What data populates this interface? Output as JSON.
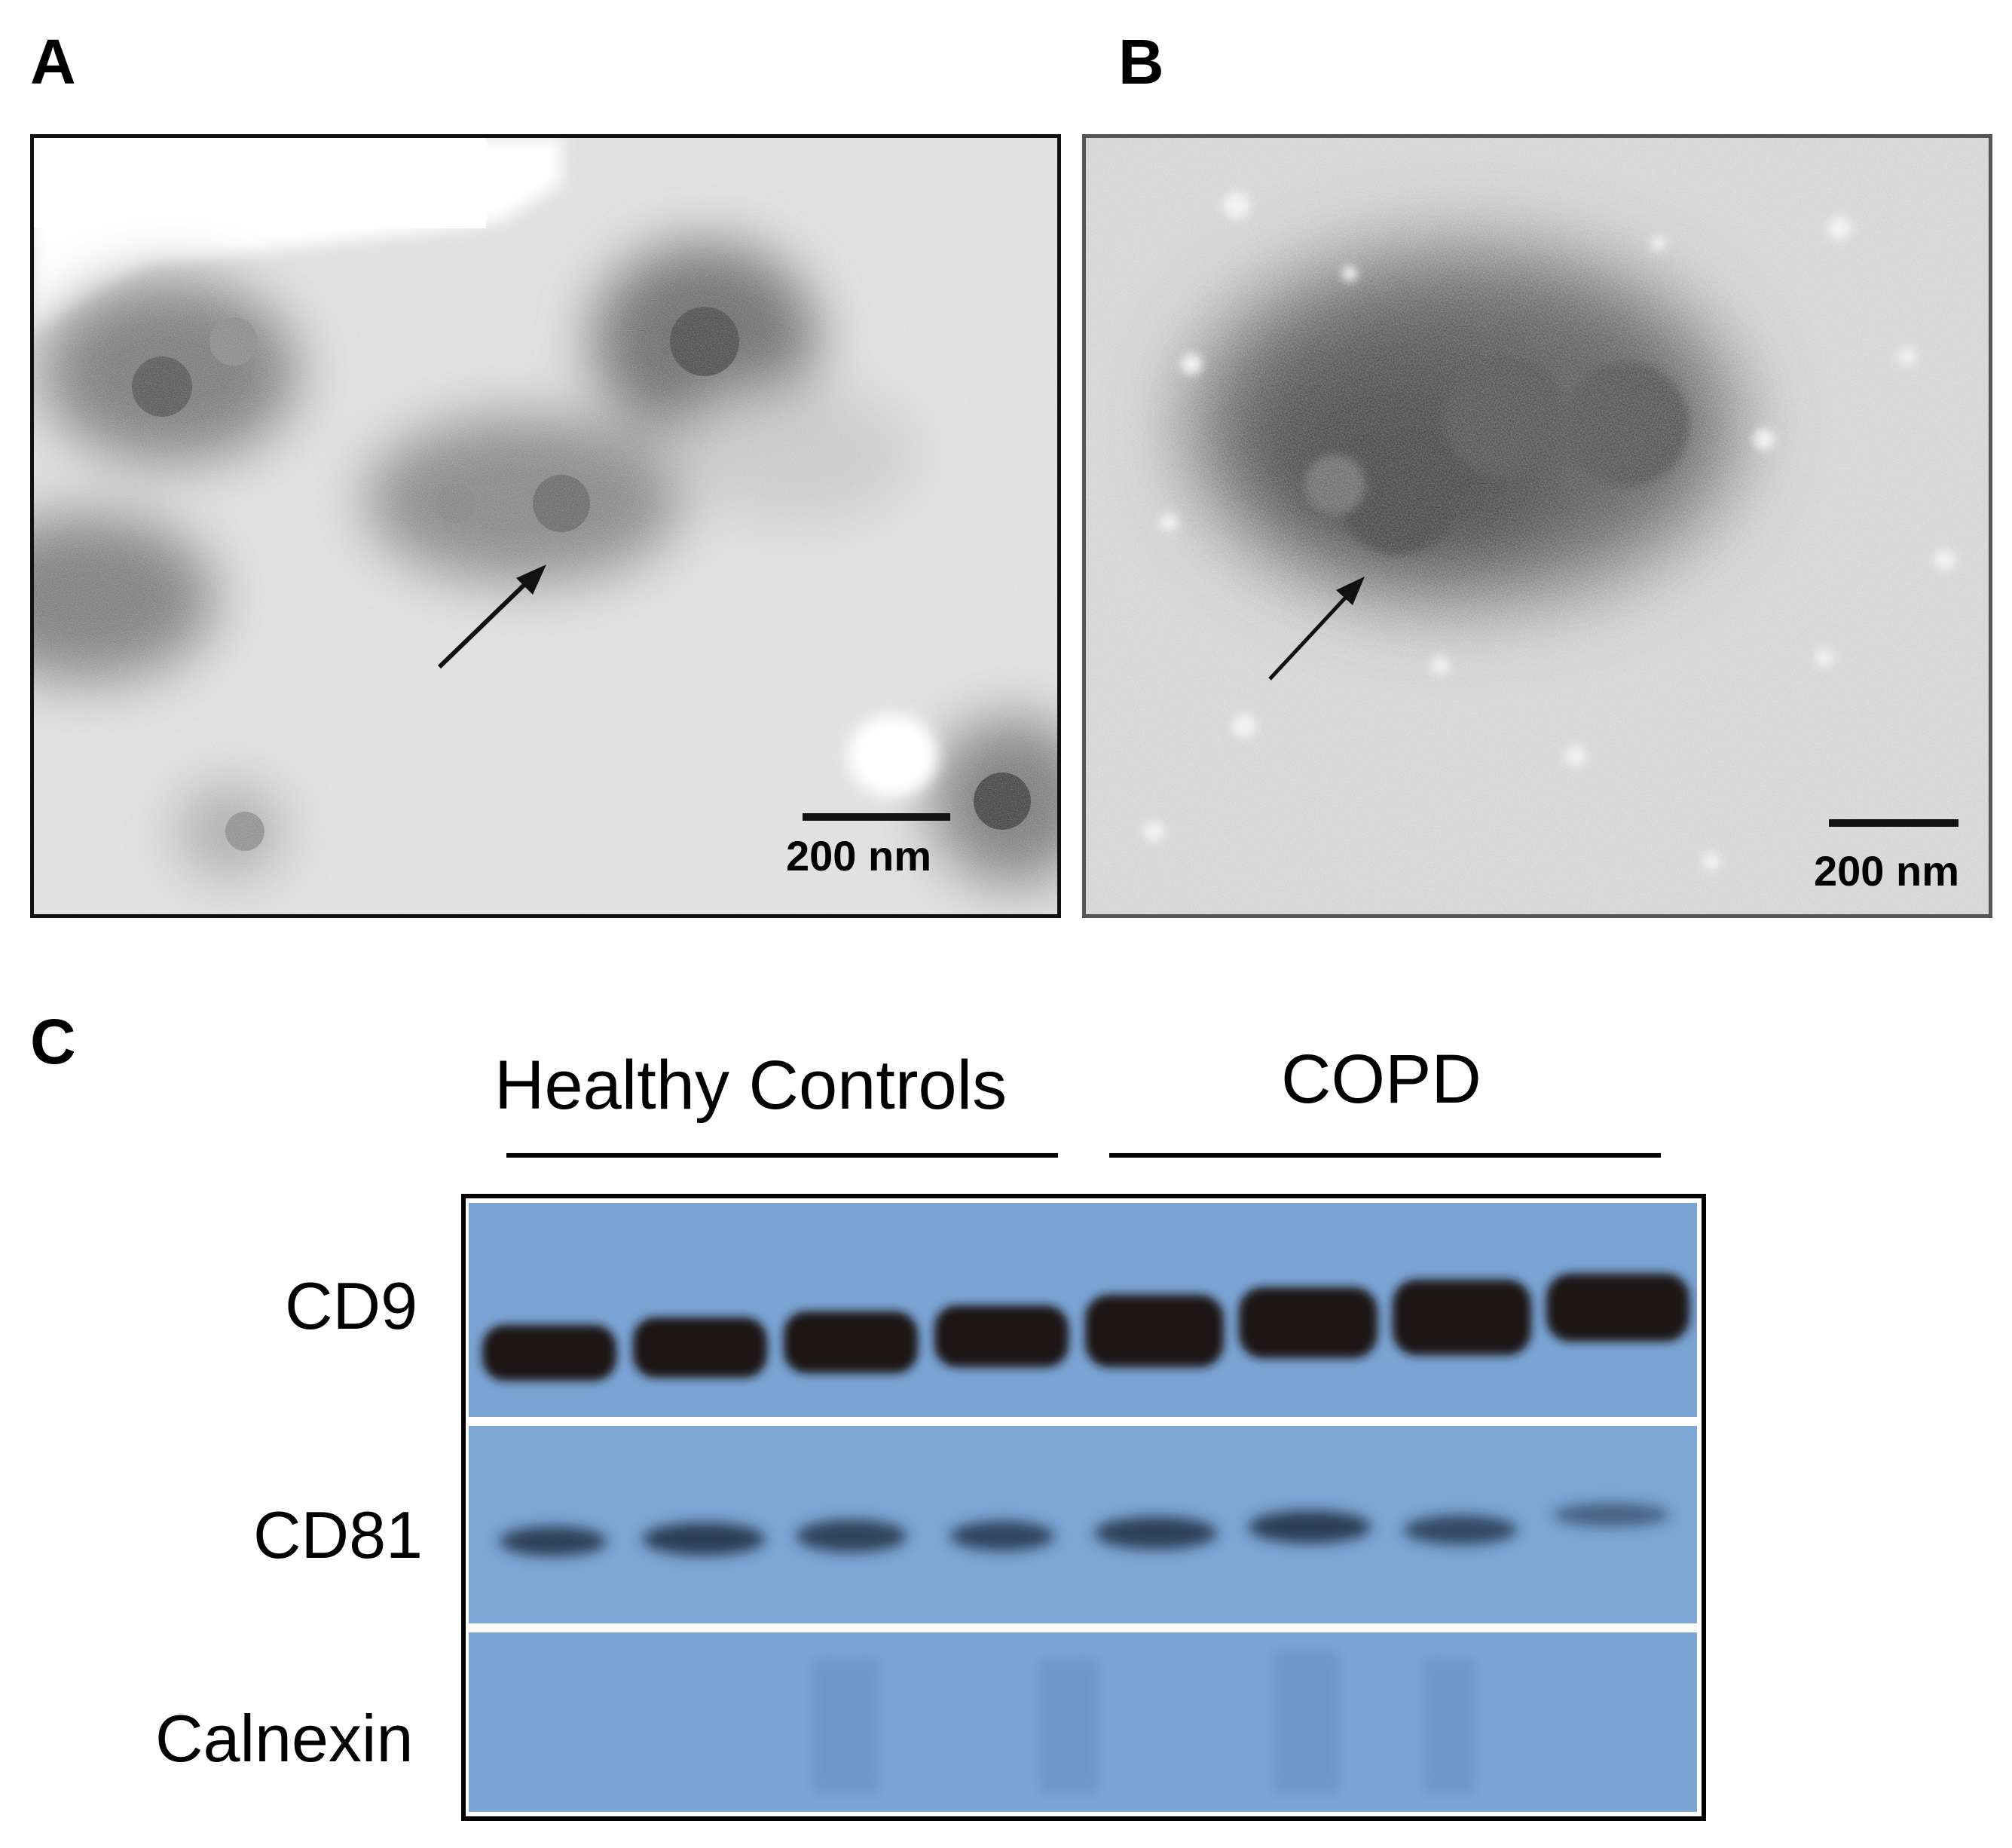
{
  "panels": {
    "a": {
      "letter": "A",
      "scale_bar_label": "200 nm"
    },
    "b": {
      "letter": "B",
      "scale_bar_label": "200 nm"
    },
    "c": {
      "letter": "C",
      "groups": [
        "Healthy Controls",
        "COPD"
      ],
      "rows": [
        "CD9",
        "CD81",
        "Calnexin"
      ]
    }
  },
  "colors": {
    "membrane": "#7ba3d3",
    "band": "#1a1713",
    "tem_background": "#dcdcdc"
  }
}
